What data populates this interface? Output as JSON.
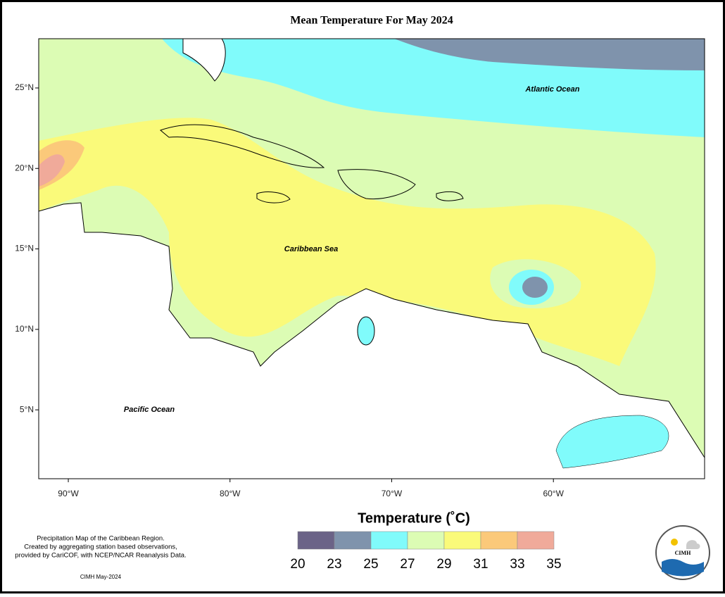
{
  "title": "Mean Temperature For May 2024",
  "map": {
    "xlim": [
      -91.83,
      -50.65
    ],
    "ylim": [
      0.72,
      28.06
    ],
    "xticks": [
      {
        "value": -90,
        "label": "90°W"
      },
      {
        "value": -80,
        "label": "80°W"
      },
      {
        "value": -70,
        "label": "70°W"
      },
      {
        "value": -60,
        "label": "60°W"
      }
    ],
    "yticks": [
      {
        "value": 5,
        "label": "5°N"
      },
      {
        "value": 10,
        "label": "10°N"
      },
      {
        "value": 15,
        "label": "15°N"
      },
      {
        "value": 20,
        "label": "20°N"
      },
      {
        "value": 25,
        "label": "25°N"
      }
    ],
    "labels": [
      "Atlantic Ocean",
      "Caribbean Sea",
      "Pacific Ocean"
    ]
  },
  "legend": {
    "title": "Temperature (˚C)",
    "bins": [
      20,
      23,
      25,
      27,
      29,
      31,
      33,
      35
    ],
    "colors": [
      "#6b6387",
      "#7f93ac",
      "#80fbfb",
      "#dcfcb4",
      "#fafa7a",
      "#fbc97a",
      "#f0aa9a"
    ]
  },
  "notes": [
    "Precipitation Map of the Caribbean Region.",
    "Created by aggregating station based observations,",
    "provided by CariCOF, with NCEP/NCAR Reanalysis Data.",
    "CIMH May-2024"
  ],
  "logo": "CIMH"
}
